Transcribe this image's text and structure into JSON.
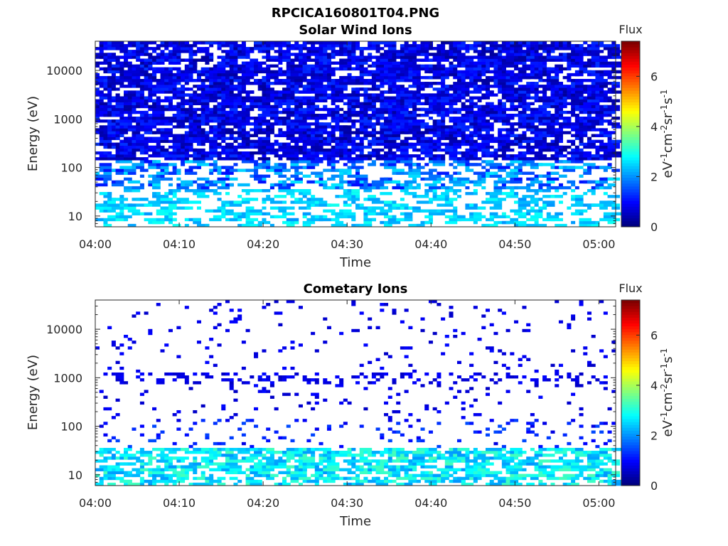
{
  "figure": {
    "title": "RPCICA160801T04.PNG"
  },
  "chart_data": [
    {
      "type": "heatmap",
      "title": "Solar Wind Ions",
      "xlabel": "Time",
      "ylabel": "Energy (eV)",
      "x_ticks": [
        "04:00",
        "04:10",
        "04:20",
        "04:30",
        "04:40",
        "04:50",
        "05:00"
      ],
      "x_range": [
        "04:00",
        "05:02"
      ],
      "y_scale": "log",
      "y_ticks": [
        10,
        100,
        1000,
        10000
      ],
      "y_tick_labels": [
        "10",
        "100",
        "1000",
        "10000"
      ],
      "y_range": [
        6,
        40000
      ],
      "colorbar": {
        "title": "Flux",
        "label": "eV-1cm-2sr-1s-1",
        "label_base": "eV",
        "label_parts": [
          [
            "-1",
            "cm"
          ],
          [
            "-2",
            "sr"
          ],
          [
            "-1",
            "s"
          ],
          [
            "-1",
            ""
          ]
        ],
        "range": [
          0,
          7.4
        ],
        "ticks": [
          0,
          2,
          4,
          6
        ],
        "colormap": "jet"
      },
      "pattern": {
        "description_values": "dense low flux (~0.3-1.2) above ~100 eV, sparse moderate flux (~2-2.8) below ~100 eV",
        "high_energy_fill": 0.62,
        "high_energy_value_range": [
          0.2,
          1.3
        ],
        "mid_energy_value_range": [
          1.0,
          2.6
        ],
        "low_energy_fill": 0.3,
        "low_energy_value_range": [
          2.0,
          2.9
        ]
      }
    },
    {
      "type": "heatmap",
      "title": "Cometary Ions",
      "xlabel": "Time",
      "ylabel": "Energy (eV)",
      "x_ticks": [
        "04:00",
        "04:10",
        "04:20",
        "04:30",
        "04:40",
        "04:50",
        "05:00"
      ],
      "x_range": [
        "04:00",
        "05:02"
      ],
      "y_scale": "log",
      "y_ticks": [
        10,
        100,
        1000,
        10000
      ],
      "y_tick_labels": [
        "10",
        "100",
        "1000",
        "10000"
      ],
      "y_range": [
        6,
        40000
      ],
      "colorbar": {
        "title": "Flux",
        "label": "eV-1cm-2sr-1s-1",
        "label_base": "eV",
        "label_parts": [
          [
            "-1",
            "cm"
          ],
          [
            "-2",
            "sr"
          ],
          [
            "-1",
            "s"
          ],
          [
            "-1",
            ""
          ]
        ],
        "range": [
          0,
          7.4
        ],
        "ticks": [
          0,
          2,
          4,
          6
        ],
        "colormap": "jet"
      },
      "pattern": {
        "description_values": "sparse low flux (~0.5-1) above ~50 eV, row of moderate flux (~2-3.3) near 10-20 eV",
        "high_energy_fill": 0.06,
        "high_energy_value_range": [
          0.5,
          1.0
        ],
        "mid_energy_value_range": [
          0.7,
          1.5
        ],
        "low_energy_fill": 0.45,
        "low_energy_value_range": [
          2.0,
          3.3
        ]
      }
    }
  ]
}
